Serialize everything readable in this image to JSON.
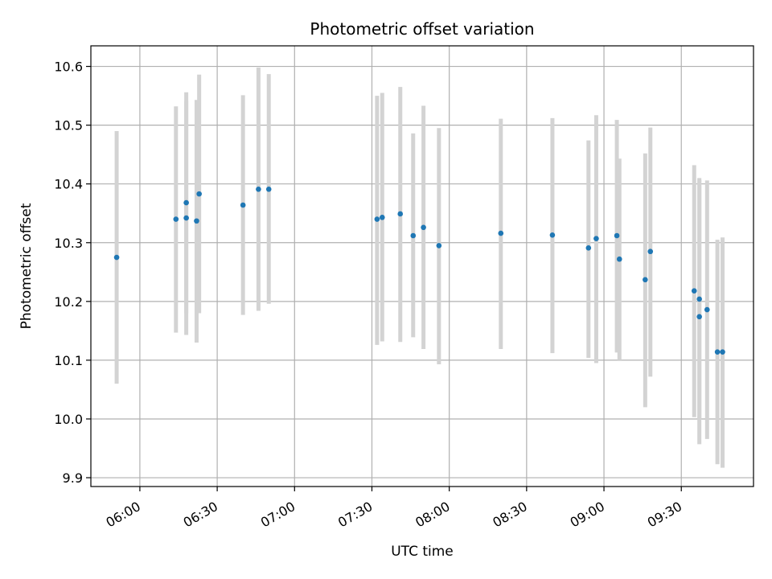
{
  "chart_data": {
    "type": "scatter",
    "title": "Photometric offset variation",
    "xlabel": "UTC time",
    "ylabel": "Photometric offset",
    "x_unit": "UTC time of day (HH:MM)",
    "xlim": [
      "05:41",
      "09:58"
    ],
    "ylim": [
      9.885,
      10.635
    ],
    "x_ticks": [
      "06:00",
      "06:30",
      "07:00",
      "07:30",
      "08:00",
      "08:30",
      "09:00",
      "09:30"
    ],
    "y_ticks": [
      9.9,
      10.0,
      10.1,
      10.2,
      10.3,
      10.4,
      10.5,
      10.6
    ],
    "y_tick_labels": [
      "9.9",
      "10.0",
      "10.1",
      "10.2",
      "10.3",
      "10.4",
      "10.5",
      "10.6"
    ],
    "grid": true,
    "point_color": "#1f77b4",
    "errorbar_color": "#d3d3d3",
    "points": [
      {
        "time": "05:51",
        "y": 10.275,
        "ylo": 10.06,
        "yhi": 10.49
      },
      {
        "time": "06:14",
        "y": 10.34,
        "ylo": 10.147,
        "yhi": 10.532
      },
      {
        "time": "06:18",
        "y": 10.368,
        "ylo": 10.18,
        "yhi": 10.556
      },
      {
        "time": "06:18",
        "y": 10.342,
        "ylo": 10.143,
        "yhi": 10.541
      },
      {
        "time": "06:22",
        "y": 10.337,
        "ylo": 10.13,
        "yhi": 10.543
      },
      {
        "time": "06:23",
        "y": 10.383,
        "ylo": 10.18,
        "yhi": 10.586
      },
      {
        "time": "06:40",
        "y": 10.364,
        "ylo": 10.177,
        "yhi": 10.551
      },
      {
        "time": "06:46",
        "y": 10.391,
        "ylo": 10.184,
        "yhi": 10.598
      },
      {
        "time": "06:50",
        "y": 10.391,
        "ylo": 10.196,
        "yhi": 10.587
      },
      {
        "time": "07:32",
        "y": 10.34,
        "ylo": 10.126,
        "yhi": 10.55
      },
      {
        "time": "07:34",
        "y": 10.343,
        "ylo": 10.132,
        "yhi": 10.555
      },
      {
        "time": "07:41",
        "y": 10.349,
        "ylo": 10.131,
        "yhi": 10.565
      },
      {
        "time": "07:46",
        "y": 10.312,
        "ylo": 10.139,
        "yhi": 10.486
      },
      {
        "time": "07:50",
        "y": 10.326,
        "ylo": 10.119,
        "yhi": 10.533
      },
      {
        "time": "07:56",
        "y": 10.295,
        "ylo": 10.093,
        "yhi": 10.495
      },
      {
        "time": "08:20",
        "y": 10.316,
        "ylo": 10.119,
        "yhi": 10.511
      },
      {
        "time": "08:40",
        "y": 10.313,
        "ylo": 10.112,
        "yhi": 10.512
      },
      {
        "time": "08:54",
        "y": 10.291,
        "ylo": 10.104,
        "yhi": 10.474
      },
      {
        "time": "08:57",
        "y": 10.307,
        "ylo": 10.095,
        "yhi": 10.517
      },
      {
        "time": "09:05",
        "y": 10.312,
        "ylo": 10.113,
        "yhi": 10.509
      },
      {
        "time": "09:06",
        "y": 10.272,
        "ylo": 10.1,
        "yhi": 10.443
      },
      {
        "time": "09:16",
        "y": 10.237,
        "ylo": 10.02,
        "yhi": 10.452
      },
      {
        "time": "09:18",
        "y": 10.285,
        "ylo": 10.072,
        "yhi": 10.496
      },
      {
        "time": "09:35",
        "y": 10.218,
        "ylo": 10.003,
        "yhi": 10.432
      },
      {
        "time": "09:37",
        "y": 10.174,
        "ylo": 9.957,
        "yhi": 10.41
      },
      {
        "time": "09:37",
        "y": 10.204,
        "ylo": 9.999,
        "yhi": 10.407
      },
      {
        "time": "09:40",
        "y": 10.186,
        "ylo": 9.966,
        "yhi": 10.406
      },
      {
        "time": "09:44",
        "y": 10.114,
        "ylo": 9.923,
        "yhi": 10.305
      },
      {
        "time": "09:46",
        "y": 10.114,
        "ylo": 9.917,
        "yhi": 10.309
      }
    ]
  }
}
